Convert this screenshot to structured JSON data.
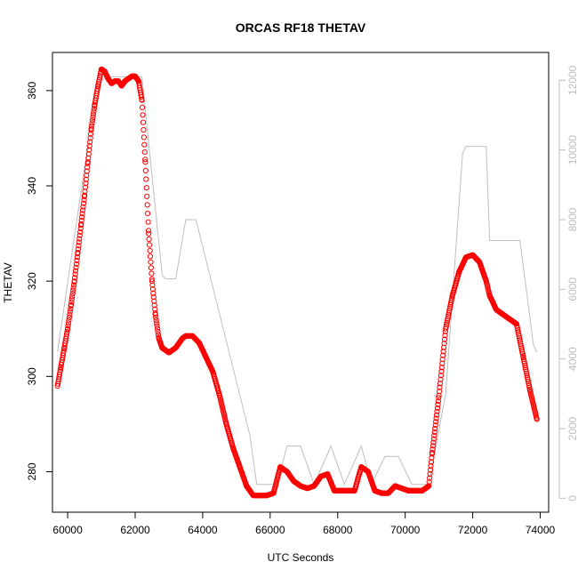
{
  "chart_data": {
    "type": "scatter",
    "title": "ORCAS RF18 THETAV",
    "xlabel": "UTC Seconds",
    "ylabel": "THETAV",
    "xlim": [
      59550,
      74250
    ],
    "ylim": [
      271.5,
      368
    ],
    "y2lim": [
      -400,
      12800
    ],
    "x_ticks": [
      60000,
      62000,
      64000,
      66000,
      68000,
      70000,
      72000,
      74000
    ],
    "y_ticks": [
      280,
      300,
      320,
      340,
      360
    ],
    "y2_ticks": [
      0,
      2000,
      4000,
      6000,
      8000,
      10000,
      12000
    ],
    "grid": false,
    "legend": "none",
    "colors": {
      "points": "#ff0000",
      "secondary_line": "#bebebe",
      "right_axis": "#bebebe",
      "frame": "#000000"
    },
    "series": [
      {
        "marker": "open-circle",
        "color": "#ff0000",
        "x": [
          59700,
          59800,
          59900,
          60000,
          60100,
          60200,
          60300,
          60400,
          60500,
          60600,
          60700,
          60800,
          60900,
          61000,
          61100,
          61200,
          61300,
          61400,
          61500,
          61600,
          61700,
          61800,
          61900,
          62000,
          62100,
          62200,
          62300,
          62400,
          62500,
          62600,
          62700,
          62800,
          62900,
          63000,
          63200,
          63400,
          63500,
          63700,
          63900,
          64100,
          64300,
          64500,
          64700,
          64900,
          65100,
          65300,
          65500,
          65700,
          65900,
          66100,
          66300,
          66500,
          66700,
          66900,
          67100,
          67300,
          67500,
          67700,
          67900,
          68100,
          68300,
          68500,
          68700,
          68900,
          69100,
          69300,
          69500,
          69700,
          69900,
          70100,
          70300,
          70500,
          70700,
          70800,
          71000,
          71200,
          71400,
          71600,
          71800,
          72000,
          72200,
          72400,
          72500,
          72700,
          72900,
          73100,
          73300,
          73500,
          73700,
          73900
        ],
        "values": [
          298,
          302,
          306,
          310,
          315,
          320,
          326,
          332,
          338,
          345,
          352,
          357,
          361,
          364.5,
          364,
          362.5,
          361.5,
          362,
          362,
          361,
          362,
          362.5,
          363,
          363,
          362,
          358,
          345,
          330,
          320,
          313,
          308,
          306,
          305.5,
          305,
          306,
          308,
          308.5,
          308.5,
          307,
          304,
          301,
          296,
          290,
          285,
          281,
          277,
          275,
          275,
          275,
          275.5,
          281,
          280,
          278,
          277,
          276.5,
          277,
          279,
          279.5,
          276,
          276,
          276,
          276,
          281,
          280,
          276,
          275.5,
          275.5,
          277,
          276.5,
          276,
          276,
          276,
          277,
          284,
          296,
          310,
          317,
          322,
          325,
          325.5,
          324,
          320,
          317,
          314,
          313,
          312,
          311,
          304,
          297,
          291
        ]
      },
      {
        "axis": "right",
        "style": "line",
        "color": "#bebebe",
        "x": [
          59700,
          60500,
          61000,
          61200,
          62200,
          62800,
          62900,
          63200,
          63500,
          63800,
          64500,
          65400,
          65600,
          66200,
          66500,
          66900,
          67300,
          67800,
          68200,
          68700,
          69000,
          69400,
          69800,
          70200,
          70700,
          71200,
          71700,
          71800,
          72400,
          72500,
          72800,
          73400,
          73800,
          73900
        ],
        "values": [
          4200,
          9500,
          12000,
          12100,
          12100,
          6400,
          6300,
          6300,
          8000,
          8000,
          5300,
          1800,
          400,
          400,
          1500,
          1500,
          400,
          1500,
          400,
          1500,
          400,
          1200,
          1200,
          400,
          400,
          3000,
          9900,
          10100,
          10100,
          7400,
          7400,
          7400,
          4400,
          4200
        ]
      }
    ]
  }
}
